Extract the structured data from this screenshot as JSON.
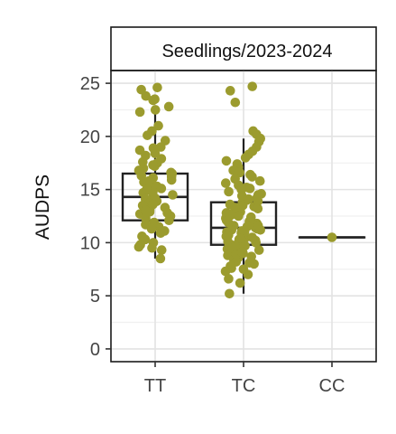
{
  "chart_data": {
    "type": "box",
    "facet_title": "Seedlings/2023-2024",
    "ylabel": "AUDPS",
    "xlabel": "",
    "ylim": [
      -1.2,
      26.2
    ],
    "yticks": [
      0,
      5,
      10,
      15,
      20,
      25
    ],
    "grid": true,
    "categories": [
      "TT",
      "TC",
      "CC"
    ],
    "point_color": "#9b9b2e",
    "box_stats": [
      {
        "category": "TT",
        "min": 8.5,
        "q1": 12.1,
        "median": 14.3,
        "q3": 16.5,
        "max": 22.3
      },
      {
        "category": "TC",
        "min": 5.2,
        "q1": 9.8,
        "median": 11.4,
        "q3": 13.8,
        "max": 19.8
      },
      {
        "category": "CC",
        "min": 10.5,
        "q1": 10.5,
        "median": 10.5,
        "q3": 10.5,
        "max": 10.5
      }
    ],
    "points": [
      {
        "category": "TT",
        "values": [
          23.5,
          24.6,
          24.4,
          23.8,
          23.4,
          22.5,
          22.3,
          22.8,
          21.0,
          20.5,
          20.1,
          19.6,
          19.0,
          18.7,
          18.4,
          18.2,
          17.9,
          17.6,
          17.5,
          17.2,
          17.0,
          16.8,
          16.6,
          16.5,
          16.3,
          16.1,
          15.9,
          15.7,
          15.5,
          15.3,
          15.1,
          14.9,
          14.7,
          14.5,
          14.3,
          14.1,
          13.9,
          13.7,
          13.5,
          13.3,
          13.1,
          12.9,
          12.7,
          12.5,
          12.3,
          12.1,
          11.9,
          11.7,
          11.5,
          11.3,
          11.1,
          10.9,
          10.6,
          10.3,
          10.0,
          9.8,
          9.6,
          9.5,
          9.3,
          8.5,
          16.2,
          15.8,
          14.8,
          14.2,
          13.6,
          12.8,
          18.9,
          17.3,
          15.0,
          13.0
        ]
      },
      {
        "category": "TC",
        "values": [
          24.7,
          24.3,
          23.2,
          20.5,
          20.2,
          19.8,
          19.5,
          19.0,
          18.6,
          18.3,
          18.0,
          17.7,
          17.4,
          17.1,
          16.8,
          16.6,
          16.4,
          16.2,
          16.0,
          15.8,
          15.6,
          15.4,
          15.2,
          15.0,
          14.8,
          14.6,
          14.4,
          14.2,
          14.0,
          13.8,
          13.6,
          13.4,
          13.2,
          13.0,
          12.8,
          12.6,
          12.4,
          12.2,
          12.0,
          11.8,
          11.6,
          11.4,
          11.2,
          11.0,
          10.8,
          10.6,
          10.4,
          10.2,
          10.0,
          9.8,
          9.6,
          9.4,
          9.2,
          9.0,
          8.8,
          8.6,
          8.4,
          8.2,
          8.0,
          7.8,
          7.6,
          7.3,
          7.0,
          6.6,
          6.2,
          5.2,
          13.5,
          12.9,
          12.3,
          11.7,
          11.1,
          10.5,
          9.9,
          9.3,
          8.7,
          14.1,
          13.3,
          12.5,
          11.9,
          11.3,
          10.7,
          10.1,
          9.5,
          8.9,
          12.1,
          11.5,
          10.9,
          10.3,
          9.7,
          11.6,
          11.0,
          10.4,
          12.7,
          13.9,
          8.1,
          7.5,
          14.5,
          15.1,
          9.1,
          11.2
        ]
      },
      {
        "category": "CC",
        "values": [
          10.5
        ]
      }
    ]
  }
}
